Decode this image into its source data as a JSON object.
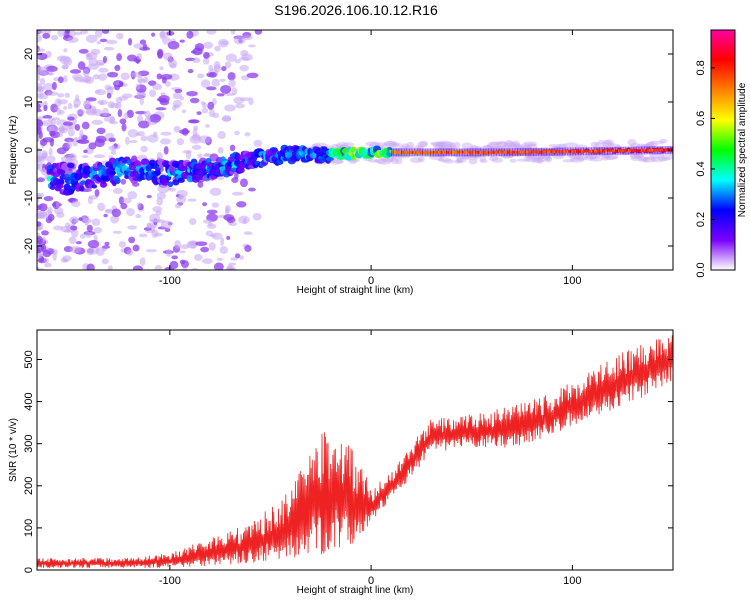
{
  "title": "S196.2026.106.10.12.R16",
  "chart_data": [
    {
      "type": "heatmap",
      "xlabel": "Height of straight line (km)",
      "ylabel": "Frequency (Hz)",
      "xlim": [
        -166,
        150
      ],
      "ylim": [
        -25,
        25
      ],
      "xticks": [
        -100,
        0,
        100
      ],
      "yticks": [
        -20,
        -10,
        0,
        10,
        20
      ],
      "colorbar": {
        "label": "Normalized spectral amplitude",
        "range": [
          0,
          0.95
        ],
        "ticks": [
          "0.0",
          "0.2",
          "0.4",
          "0.6",
          "0.8"
        ],
        "colors": [
          "#ffffff",
          "#7a00ff",
          "#0000ff",
          "#00ffff",
          "#00ff00",
          "#ffff00",
          "#ff8000",
          "#ff0000",
          "#ff00a0"
        ]
      },
      "ridge": [
        {
          "x": -150,
          "f": -6
        },
        {
          "x": -120,
          "f": -4
        },
        {
          "x": -100,
          "f": -5
        },
        {
          "x": -80,
          "f": -4
        },
        {
          "x": -60,
          "f": -2
        },
        {
          "x": -40,
          "f": -1
        },
        {
          "x": -20,
          "f": -1
        },
        {
          "x": 0,
          "f": -0.5
        },
        {
          "x": 20,
          "f": -0.5
        },
        {
          "x": 60,
          "f": -0.5
        },
        {
          "x": 100,
          "f": -0.3
        },
        {
          "x": 150,
          "f": 0
        }
      ]
    },
    {
      "type": "line",
      "xlabel": "Height of straight line (km)",
      "ylabel": "SNR (10 * v/v)",
      "xlim": [
        -166,
        150
      ],
      "ylim": [
        0,
        570
      ],
      "xticks": [
        -100,
        0,
        100
      ],
      "yticks": [
        0,
        100,
        200,
        300,
        400,
        500
      ],
      "series": [
        {
          "name": "SNR",
          "color": "#ee2222",
          "envelope": [
            {
              "x": -166,
              "min": 5,
              "max": 28
            },
            {
              "x": -120,
              "min": 5,
              "max": 30
            },
            {
              "x": -100,
              "min": 5,
              "max": 40
            },
            {
              "x": -80,
              "min": 10,
              "max": 80
            },
            {
              "x": -60,
              "min": 15,
              "max": 110
            },
            {
              "x": -40,
              "min": 25,
              "max": 190
            },
            {
              "x": -30,
              "min": 30,
              "max": 300
            },
            {
              "x": -20,
              "min": 40,
              "max": 350
            },
            {
              "x": -10,
              "min": 50,
              "max": 300
            },
            {
              "x": 0,
              "min": 110,
              "max": 200
            },
            {
              "x": 10,
              "min": 170,
              "max": 230
            },
            {
              "x": 20,
              "min": 220,
              "max": 300
            },
            {
              "x": 30,
              "min": 280,
              "max": 360
            },
            {
              "x": 50,
              "min": 290,
              "max": 370
            },
            {
              "x": 70,
              "min": 290,
              "max": 390
            },
            {
              "x": 90,
              "min": 320,
              "max": 420
            },
            {
              "x": 110,
              "min": 360,
              "max": 480
            },
            {
              "x": 130,
              "min": 400,
              "max": 530
            },
            {
              "x": 150,
              "min": 440,
              "max": 570
            }
          ]
        }
      ]
    }
  ]
}
